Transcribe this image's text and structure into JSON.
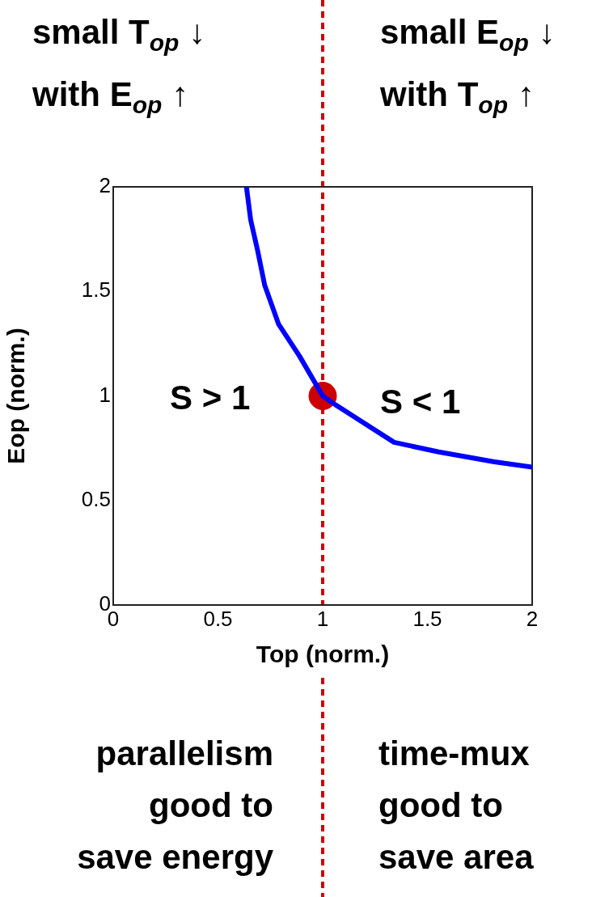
{
  "chart_data": {
    "type": "line",
    "xlabel": "Top (norm.)",
    "ylabel": "Eop (norm.)",
    "xlim": [
      0,
      2
    ],
    "ylim": [
      0,
      2
    ],
    "xticks": [
      0,
      0.5,
      1,
      1.5,
      2
    ],
    "yticks": [
      0,
      0.5,
      1,
      1.5,
      2
    ],
    "series": [
      {
        "color": "#0000ff",
        "marker": "none",
        "x": [
          0.636,
          0.656,
          0.689,
          0.723,
          0.789,
          0.889,
          1,
          1.062,
          1.341,
          1.554,
          1.82,
          2
        ],
        "values": [
          2,
          1.843,
          1.697,
          1.53,
          1.344,
          1.191,
          1,
          0.957,
          0.778,
          0.732,
          0.685,
          0.659
        ]
      },
      {
        "type": "scatter",
        "color": "#cc0000",
        "marker": "circle",
        "x": [
          1
        ],
        "values": [
          1
        ]
      }
    ],
    "ref_lines": [
      {
        "axis": "x",
        "value": 1,
        "color": "#cc0000",
        "line_style": "dashed"
      }
    ],
    "annotations": [
      "small T$_{op}$ ↓\nwith E$_{op}$ ↑",
      "small E$_{op}$ ↓\nwith T$_{op}$ ↑",
      "S > 1",
      "S < 1",
      "parallelism\ngood to\nsave energy",
      "time-mux\ngood to\nsave area"
    ]
  }
}
